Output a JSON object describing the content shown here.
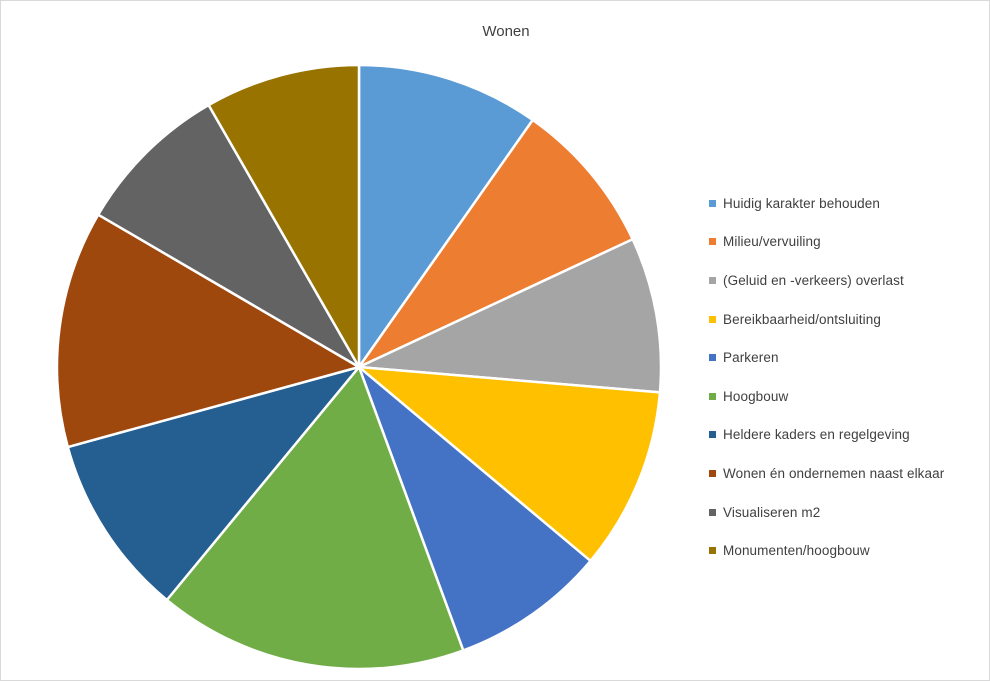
{
  "chart_data": {
    "type": "pie",
    "title": "Wonen",
    "legend_position": "right",
    "categories": [
      "Huidig karakter behouden",
      "Milieu/vervuiling",
      "(Geluid en -verkeers) overlast",
      "Bereikbaarheid/ontsluiting",
      "Parkeren",
      "Hoogbouw",
      "Heldere kaders en regelgeving",
      "Wonen én ondernemen naast elkaar",
      "Visualiseren m2",
      "Monumenten/hoogbouw"
    ],
    "values": [
      1,
      0.85,
      0.85,
      1,
      0.85,
      1.7,
      1,
      1.3,
      0.85,
      0.85
    ],
    "colors": [
      "#5B9BD5",
      "#ED7D31",
      "#A5A5A5",
      "#FFC000",
      "#4472C4",
      "#70AD47",
      "#255E91",
      "#9E480E",
      "#636363",
      "#997300"
    ]
  }
}
